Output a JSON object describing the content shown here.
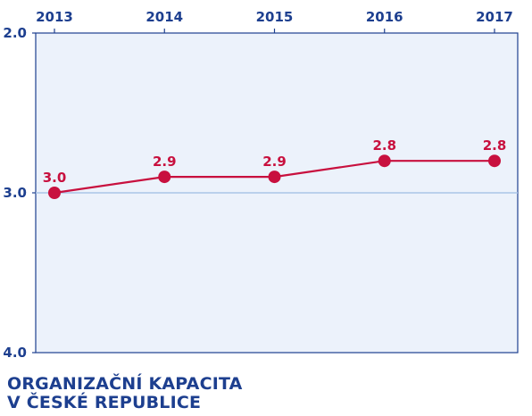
{
  "colors": {
    "axis": "#1d3f8f",
    "plot_bg": "#ecf2fb",
    "grid": "#a9c4e8",
    "series": "#c8103e",
    "label": "#c8103e"
  },
  "caption": {
    "line1": "ORGANIZAČNÍ KAPACITA",
    "line2": "V ČESKÉ REPUBLICE"
  },
  "chart_data": {
    "type": "line",
    "x": [
      "2013",
      "2014",
      "2015",
      "2016",
      "2017"
    ],
    "series": [
      {
        "values": [
          3.0,
          2.9,
          2.9,
          2.8,
          2.8
        ],
        "labels": [
          "3.0",
          "2.9",
          "2.9",
          "2.8",
          "2.8"
        ]
      }
    ],
    "y_ticks": [
      "2.0",
      "3.0",
      "4.0"
    ],
    "ylim": [
      2.0,
      4.0
    ],
    "y_inverted": true,
    "x_axis_position": "top",
    "gridlines": [
      3.0
    ],
    "legend": "none"
  }
}
